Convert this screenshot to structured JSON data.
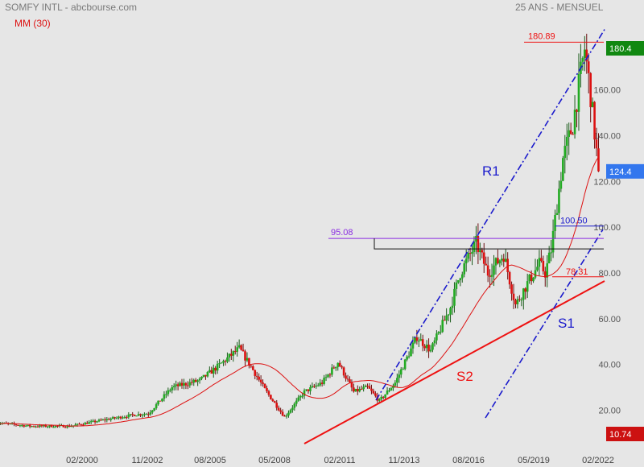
{
  "header": {
    "title": "SOMFY INTL - abcbourse.com",
    "period": "25 ANS - MENSUEL"
  },
  "legend": {
    "ma_label": "MM (30)"
  },
  "colors": {
    "background": "#e6e6e6",
    "up_candle": "#22aa22",
    "down_candle": "#dd1111",
    "moving_average": "#dd1111",
    "resistance": "#1a1acc",
    "support": "#ee1111",
    "purple_level": "#8a2be2",
    "last_price_badge": "#3377ee",
    "high_badge": "#118811",
    "low_badge": "#cc1111"
  },
  "chart_data": {
    "type": "candlestick",
    "xlabel": "",
    "ylabel": "",
    "x_ticks": [
      "02/2000",
      "11/2002",
      "08/2005",
      "05/2008",
      "02/2011",
      "11/2013",
      "08/2016",
      "05/2019",
      "02/2022"
    ],
    "y_ticks": [
      20,
      40,
      60,
      80,
      100,
      120,
      140,
      160
    ],
    "y_range": [
      5,
      190
    ],
    "grid": false,
    "legend_position": "top-left",
    "moving_average_period": 30,
    "price_path": [
      {
        "date": "1997-01",
        "close": 14.5
      },
      {
        "date": "1998-06",
        "close": 13.0
      },
      {
        "date": "2000-02",
        "close": 13.0
      },
      {
        "date": "2001-06",
        "close": 15.5
      },
      {
        "date": "2002-11",
        "close": 18.0
      },
      {
        "date": "2003-06",
        "close": 18.5
      },
      {
        "date": "2004-06",
        "close": 30.0
      },
      {
        "date": "2005-08",
        "close": 33.0
      },
      {
        "date": "2006-05",
        "close": 39.0
      },
      {
        "date": "2007-04",
        "close": 47.0
      },
      {
        "date": "2007-10",
        "close": 39.0
      },
      {
        "date": "2008-05",
        "close": 29.0
      },
      {
        "date": "2009-03",
        "close": 17.0
      },
      {
        "date": "2010-01",
        "close": 28.0
      },
      {
        "date": "2010-10",
        "close": 32.0
      },
      {
        "date": "2011-06",
        "close": 41.0
      },
      {
        "date": "2012-02",
        "close": 28.0
      },
      {
        "date": "2012-09",
        "close": 30.0
      },
      {
        "date": "2013-03",
        "close": 24.0
      },
      {
        "date": "2013-11",
        "close": 32.0
      },
      {
        "date": "2014-10",
        "close": 52.0
      },
      {
        "date": "2015-05",
        "close": 46.0
      },
      {
        "date": "2016-03",
        "close": 65.0
      },
      {
        "date": "2016-08",
        "close": 80.0
      },
      {
        "date": "2017-04",
        "close": 93.0
      },
      {
        "date": "2017-10",
        "close": 80.0
      },
      {
        "date": "2018-06",
        "close": 88.0
      },
      {
        "date": "2018-12",
        "close": 66.0
      },
      {
        "date": "2019-05",
        "close": 74.0
      },
      {
        "date": "2019-12",
        "close": 84.0
      },
      {
        "date": "2020-03",
        "close": 80.0
      },
      {
        "date": "2020-06",
        "close": 90.0
      },
      {
        "date": "2020-12",
        "close": 130.0
      },
      {
        "date": "2021-05",
        "close": 145.0
      },
      {
        "date": "2021-11",
        "close": 178.0
      },
      {
        "date": "2022-02",
        "close": 158.0
      },
      {
        "date": "2022-06",
        "close": 124.4
      }
    ],
    "annotations": {
      "high_level": {
        "label": "180.89",
        "value": 180.89
      },
      "purple_level": {
        "label": "95.08",
        "value": 95.08
      },
      "blue_level": {
        "label": "100.50",
        "value": 100.5
      },
      "red_level": {
        "label": "78.31",
        "value": 78.31
      },
      "black_box_level": 90.5,
      "channel_upper_label": "R1",
      "channel_lower_label": "S1",
      "support_label": "S2"
    },
    "price_badges": {
      "high": {
        "label": "180.4",
        "value": 180.4
      },
      "last": {
        "label": "124.4",
        "value": 124.4
      },
      "low": {
        "label": "10.74",
        "value": 10.74
      }
    }
  }
}
